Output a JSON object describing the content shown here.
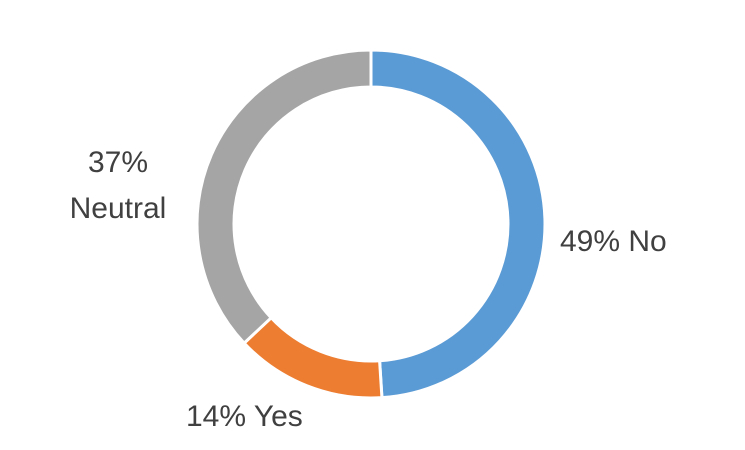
{
  "chart_data": {
    "type": "pie",
    "variant": "donut",
    "title": "",
    "legend": "none",
    "slices": [
      {
        "label": "No",
        "value": 49,
        "color": "#5b9bd5",
        "data_label": "49% No"
      },
      {
        "label": "Yes",
        "value": 14,
        "color": "#ed7d31",
        "data_label": "14% Yes"
      },
      {
        "label": "Neutral",
        "value": 37,
        "color": "#a5a5a5",
        "data_label_lines": [
          "37%",
          "Neutral"
        ]
      }
    ]
  }
}
